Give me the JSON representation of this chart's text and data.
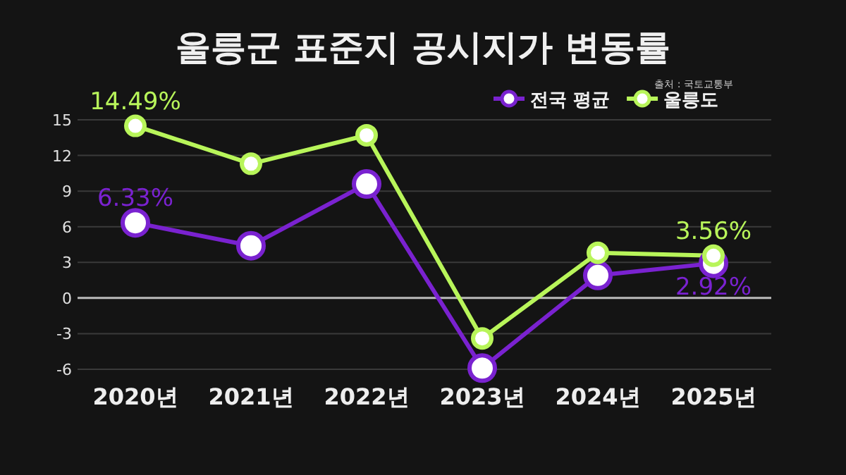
{
  "chart_data": {
    "type": "line",
    "title": "울릉군 표준지 공시지가 변동률",
    "annotations": [
      "출처 : 국토교통부",
      {
        "text": "6.33%",
        "x": "2020년",
        "y": 6.33
      },
      {
        "text": "14.49%",
        "x": "2020년",
        "y": 14.49
      },
      {
        "text": "3.56%",
        "x": "2025년",
        "y": 3.56
      },
      {
        "text": "2.92%",
        "x": "2025년",
        "y": 2.92
      }
    ],
    "categories": [
      "2020년",
      "2021년",
      "2022년",
      "2023년",
      "2024년",
      "2025년"
    ],
    "series": [
      {
        "name": "전국 평균",
        "color": "#7a22d0",
        "values": [
          6.33,
          4.4,
          9.6,
          -5.9,
          1.9,
          2.92
        ]
      },
      {
        "name": "울릉도",
        "color": "#b8f55a",
        "values": [
          14.49,
          11.3,
          13.7,
          -3.4,
          3.8,
          3.56
        ]
      }
    ],
    "ylim": [
      -6,
      15
    ],
    "yticks": [
      -6,
      -3,
      0,
      3,
      6,
      9,
      12,
      15
    ],
    "grid": "y",
    "legend": "top right",
    "marker": "circle",
    "line_style": "solid"
  }
}
